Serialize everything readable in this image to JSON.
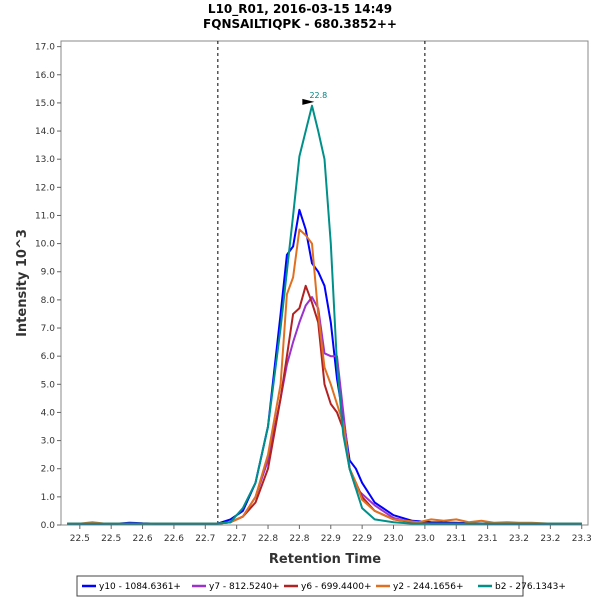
{
  "chart_data": {
    "type": "line",
    "title": "L10_R01, 2016-03-15 14:49",
    "subtitle": "FQNSAILTIQPK - 680.3852++",
    "xlabel": "Retention Time",
    "ylabel": "Intensity 10^3",
    "xlim": [
      22.47,
      23.31
    ],
    "ylim": [
      0,
      17.2
    ],
    "x_ticks": [
      22.5,
      22.55,
      22.6,
      22.65,
      22.7,
      22.75,
      22.8,
      22.85,
      22.9,
      22.95,
      23.0,
      23.05,
      23.1,
      23.15,
      23.2,
      23.25,
      23.3
    ],
    "x_tick_labels": [
      "22.5",
      "22.5",
      "22.6",
      "22.6",
      "22.7",
      "22.7",
      "22.8",
      "22.8",
      "22.9",
      "22.9",
      "23.0",
      "23.0",
      "23.1",
      "23.1",
      "23.2",
      "23.2",
      "23.3"
    ],
    "y_ticks": [
      0,
      1,
      2,
      3,
      4,
      5,
      6,
      7,
      8,
      9,
      10,
      11,
      12,
      13,
      14,
      15,
      16,
      17
    ],
    "y_tick_labels": [
      "0.0",
      "1.0",
      "2.0",
      "3.0",
      "4.0",
      "5.0",
      "6.0",
      "7.0",
      "8.0",
      "9.0",
      "10.0",
      "11.0",
      "12.0",
      "13.0",
      "14.0",
      "15.0",
      "16.0",
      "17.0"
    ],
    "grid": false,
    "legend_position": "bottom",
    "vertical_markers": [
      22.72,
      23.05
    ],
    "annotation": {
      "x": 22.877,
      "y": 15.0,
      "text": "22.8",
      "color": "#008080"
    },
    "series": [
      {
        "name": "y10 - 1084.6361+",
        "color": "#0000ff",
        "x": [
          22.48,
          22.5,
          22.52,
          22.54,
          22.56,
          22.58,
          22.6,
          22.62,
          22.64,
          22.66,
          22.68,
          22.7,
          22.72,
          22.74,
          22.76,
          22.78,
          22.8,
          22.81,
          22.82,
          22.83,
          22.84,
          22.85,
          22.86,
          22.87,
          22.88,
          22.89,
          22.9,
          22.91,
          22.92,
          22.93,
          22.94,
          22.95,
          22.97,
          23.0,
          23.03,
          23.06,
          23.1,
          23.15,
          23.2,
          23.25,
          23.3
        ],
        "y": [
          0.05,
          0.05,
          0.05,
          0.05,
          0.05,
          0.08,
          0.06,
          0.05,
          0.05,
          0.05,
          0.05,
          0.05,
          0.05,
          0.2,
          0.5,
          1.5,
          3.5,
          5.5,
          7.5,
          9.6,
          9.9,
          11.2,
          10.5,
          9.3,
          9.0,
          8.5,
          7.2,
          5.2,
          3.8,
          2.3,
          2.0,
          1.5,
          0.8,
          0.35,
          0.15,
          0.1,
          0.08,
          0.05,
          0.05,
          0.05,
          0.05
        ]
      },
      {
        "name": "y7 - 812.5240+",
        "color": "#9a32cd",
        "x": [
          22.48,
          22.5,
          22.52,
          22.54,
          22.56,
          22.58,
          22.6,
          22.62,
          22.64,
          22.66,
          22.68,
          22.7,
          22.72,
          22.74,
          22.76,
          22.78,
          22.8,
          22.82,
          22.83,
          22.84,
          22.85,
          22.86,
          22.87,
          22.88,
          22.89,
          22.9,
          22.91,
          22.92,
          22.93,
          22.94,
          22.95,
          22.97,
          23.0,
          23.03,
          23.06,
          23.1,
          23.15,
          23.2,
          23.25,
          23.3
        ],
        "y": [
          0.05,
          0.05,
          0.05,
          0.05,
          0.05,
          0.05,
          0.05,
          0.05,
          0.05,
          0.05,
          0.05,
          0.05,
          0.05,
          0.1,
          0.3,
          1.0,
          2.3,
          4.5,
          5.7,
          6.5,
          7.2,
          7.8,
          8.1,
          7.7,
          6.1,
          6.0,
          6.0,
          4.0,
          2.0,
          1.3,
          1.1,
          0.7,
          0.25,
          0.1,
          0.05,
          0.05,
          0.05,
          0.05,
          0.05,
          0.05
        ]
      },
      {
        "name": "y6 - 699.4400+",
        "color": "#b22222",
        "x": [
          22.48,
          22.5,
          22.52,
          22.54,
          22.56,
          22.58,
          22.6,
          22.62,
          22.64,
          22.66,
          22.68,
          22.7,
          22.72,
          22.74,
          22.76,
          22.78,
          22.8,
          22.82,
          22.83,
          22.84,
          22.85,
          22.86,
          22.87,
          22.88,
          22.89,
          22.9,
          22.91,
          22.92,
          22.93,
          22.94,
          22.95,
          22.97,
          23.0,
          23.03,
          23.06,
          23.1,
          23.15,
          23.2,
          23.25,
          23.3
        ],
        "y": [
          0.05,
          0.05,
          0.05,
          0.05,
          0.05,
          0.05,
          0.05,
          0.05,
          0.05,
          0.05,
          0.05,
          0.05,
          0.05,
          0.1,
          0.3,
          0.8,
          2.0,
          4.5,
          6.0,
          7.5,
          7.7,
          8.5,
          7.9,
          7.2,
          5.0,
          4.3,
          4.0,
          3.4,
          2.0,
          1.5,
          1.0,
          0.5,
          0.2,
          0.1,
          0.05,
          0.05,
          0.05,
          0.05,
          0.05,
          0.05
        ]
      },
      {
        "name": "y2 - 244.1656+",
        "color": "#e07020",
        "x": [
          22.48,
          22.5,
          22.52,
          22.54,
          22.56,
          22.58,
          22.6,
          22.62,
          22.64,
          22.66,
          22.68,
          22.7,
          22.72,
          22.74,
          22.76,
          22.78,
          22.8,
          22.82,
          22.83,
          22.84,
          22.85,
          22.86,
          22.87,
          22.88,
          22.89,
          22.9,
          22.91,
          22.92,
          22.93,
          22.94,
          22.95,
          22.97,
          23.0,
          23.02,
          23.04,
          23.06,
          23.08,
          23.1,
          23.12,
          23.14,
          23.16,
          23.18,
          23.2,
          23.22,
          23.25,
          23.3
        ],
        "y": [
          0.05,
          0.05,
          0.1,
          0.05,
          0.05,
          0.05,
          0.05,
          0.05,
          0.05,
          0.05,
          0.05,
          0.05,
          0.05,
          0.1,
          0.3,
          1.0,
          2.5,
          5.0,
          8.2,
          8.8,
          10.5,
          10.3,
          10.0,
          7.5,
          5.6,
          5.0,
          4.3,
          3.6,
          2.0,
          1.5,
          0.9,
          0.5,
          0.2,
          0.15,
          0.1,
          0.2,
          0.15,
          0.2,
          0.1,
          0.15,
          0.08,
          0.1,
          0.08,
          0.08,
          0.05,
          0.05
        ]
      },
      {
        "name": "b2 - 276.1343+",
        "color": "#00908a",
        "x": [
          22.48,
          22.5,
          22.52,
          22.54,
          22.56,
          22.58,
          22.6,
          22.62,
          22.64,
          22.66,
          22.68,
          22.7,
          22.72,
          22.74,
          22.76,
          22.78,
          22.8,
          22.82,
          22.84,
          22.85,
          22.87,
          22.88,
          22.89,
          22.9,
          22.91,
          22.92,
          22.93,
          22.95,
          22.97,
          23.0,
          23.03,
          23.06,
          23.1,
          23.15,
          23.2,
          23.25,
          23.3
        ],
        "y": [
          0.05,
          0.05,
          0.05,
          0.05,
          0.05,
          0.05,
          0.05,
          0.05,
          0.05,
          0.05,
          0.05,
          0.05,
          0.05,
          0.1,
          0.6,
          1.5,
          3.5,
          7.0,
          11.0,
          13.1,
          14.9,
          14.0,
          13.0,
          10.0,
          5.7,
          3.2,
          2.0,
          0.6,
          0.2,
          0.1,
          0.05,
          0.05,
          0.05,
          0.05,
          0.05,
          0.05,
          0.05
        ]
      }
    ]
  }
}
